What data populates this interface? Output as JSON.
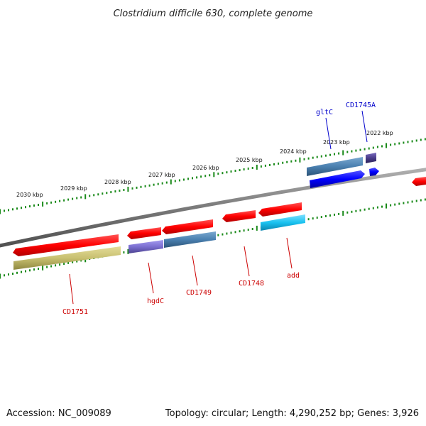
{
  "title": "Clostridium difficile 630, complete genome",
  "footer": {
    "accession": "Accession: NC_009089",
    "summary": "Topology: circular; Length: 4,290,252 bp; Genes: 3,926"
  },
  "kbp_labels": [
    "2030 kbp",
    "2029 kbp",
    "2028 kbp",
    "2027 kbp",
    "2026 kbp",
    "2025 kbp",
    "2024 kbp",
    "2023 kbp",
    "2022 kbp"
  ],
  "gene_labels": {
    "cd1751": "CD1751",
    "hgdc": "hgdC",
    "cd1749": "CD1749",
    "cd1748": "CD1748",
    "add": "add",
    "gltc": "gltC",
    "cd1745a": "CD1745A"
  },
  "colors": {
    "backbone": "#7a7a7a",
    "tick": "#1a8a1a",
    "gene_red": "#ff0000",
    "cds_olive": "#c8c070",
    "cds_purple": "#7b6fd0",
    "cds_steel": "#4a80b0",
    "cds_cyan": "#19c2f0",
    "gene_blue": "#0000ff",
    "cds_indigo": "#4b3d8a",
    "label_red": "#cc0000",
    "label_blue": "#0000cc"
  }
}
